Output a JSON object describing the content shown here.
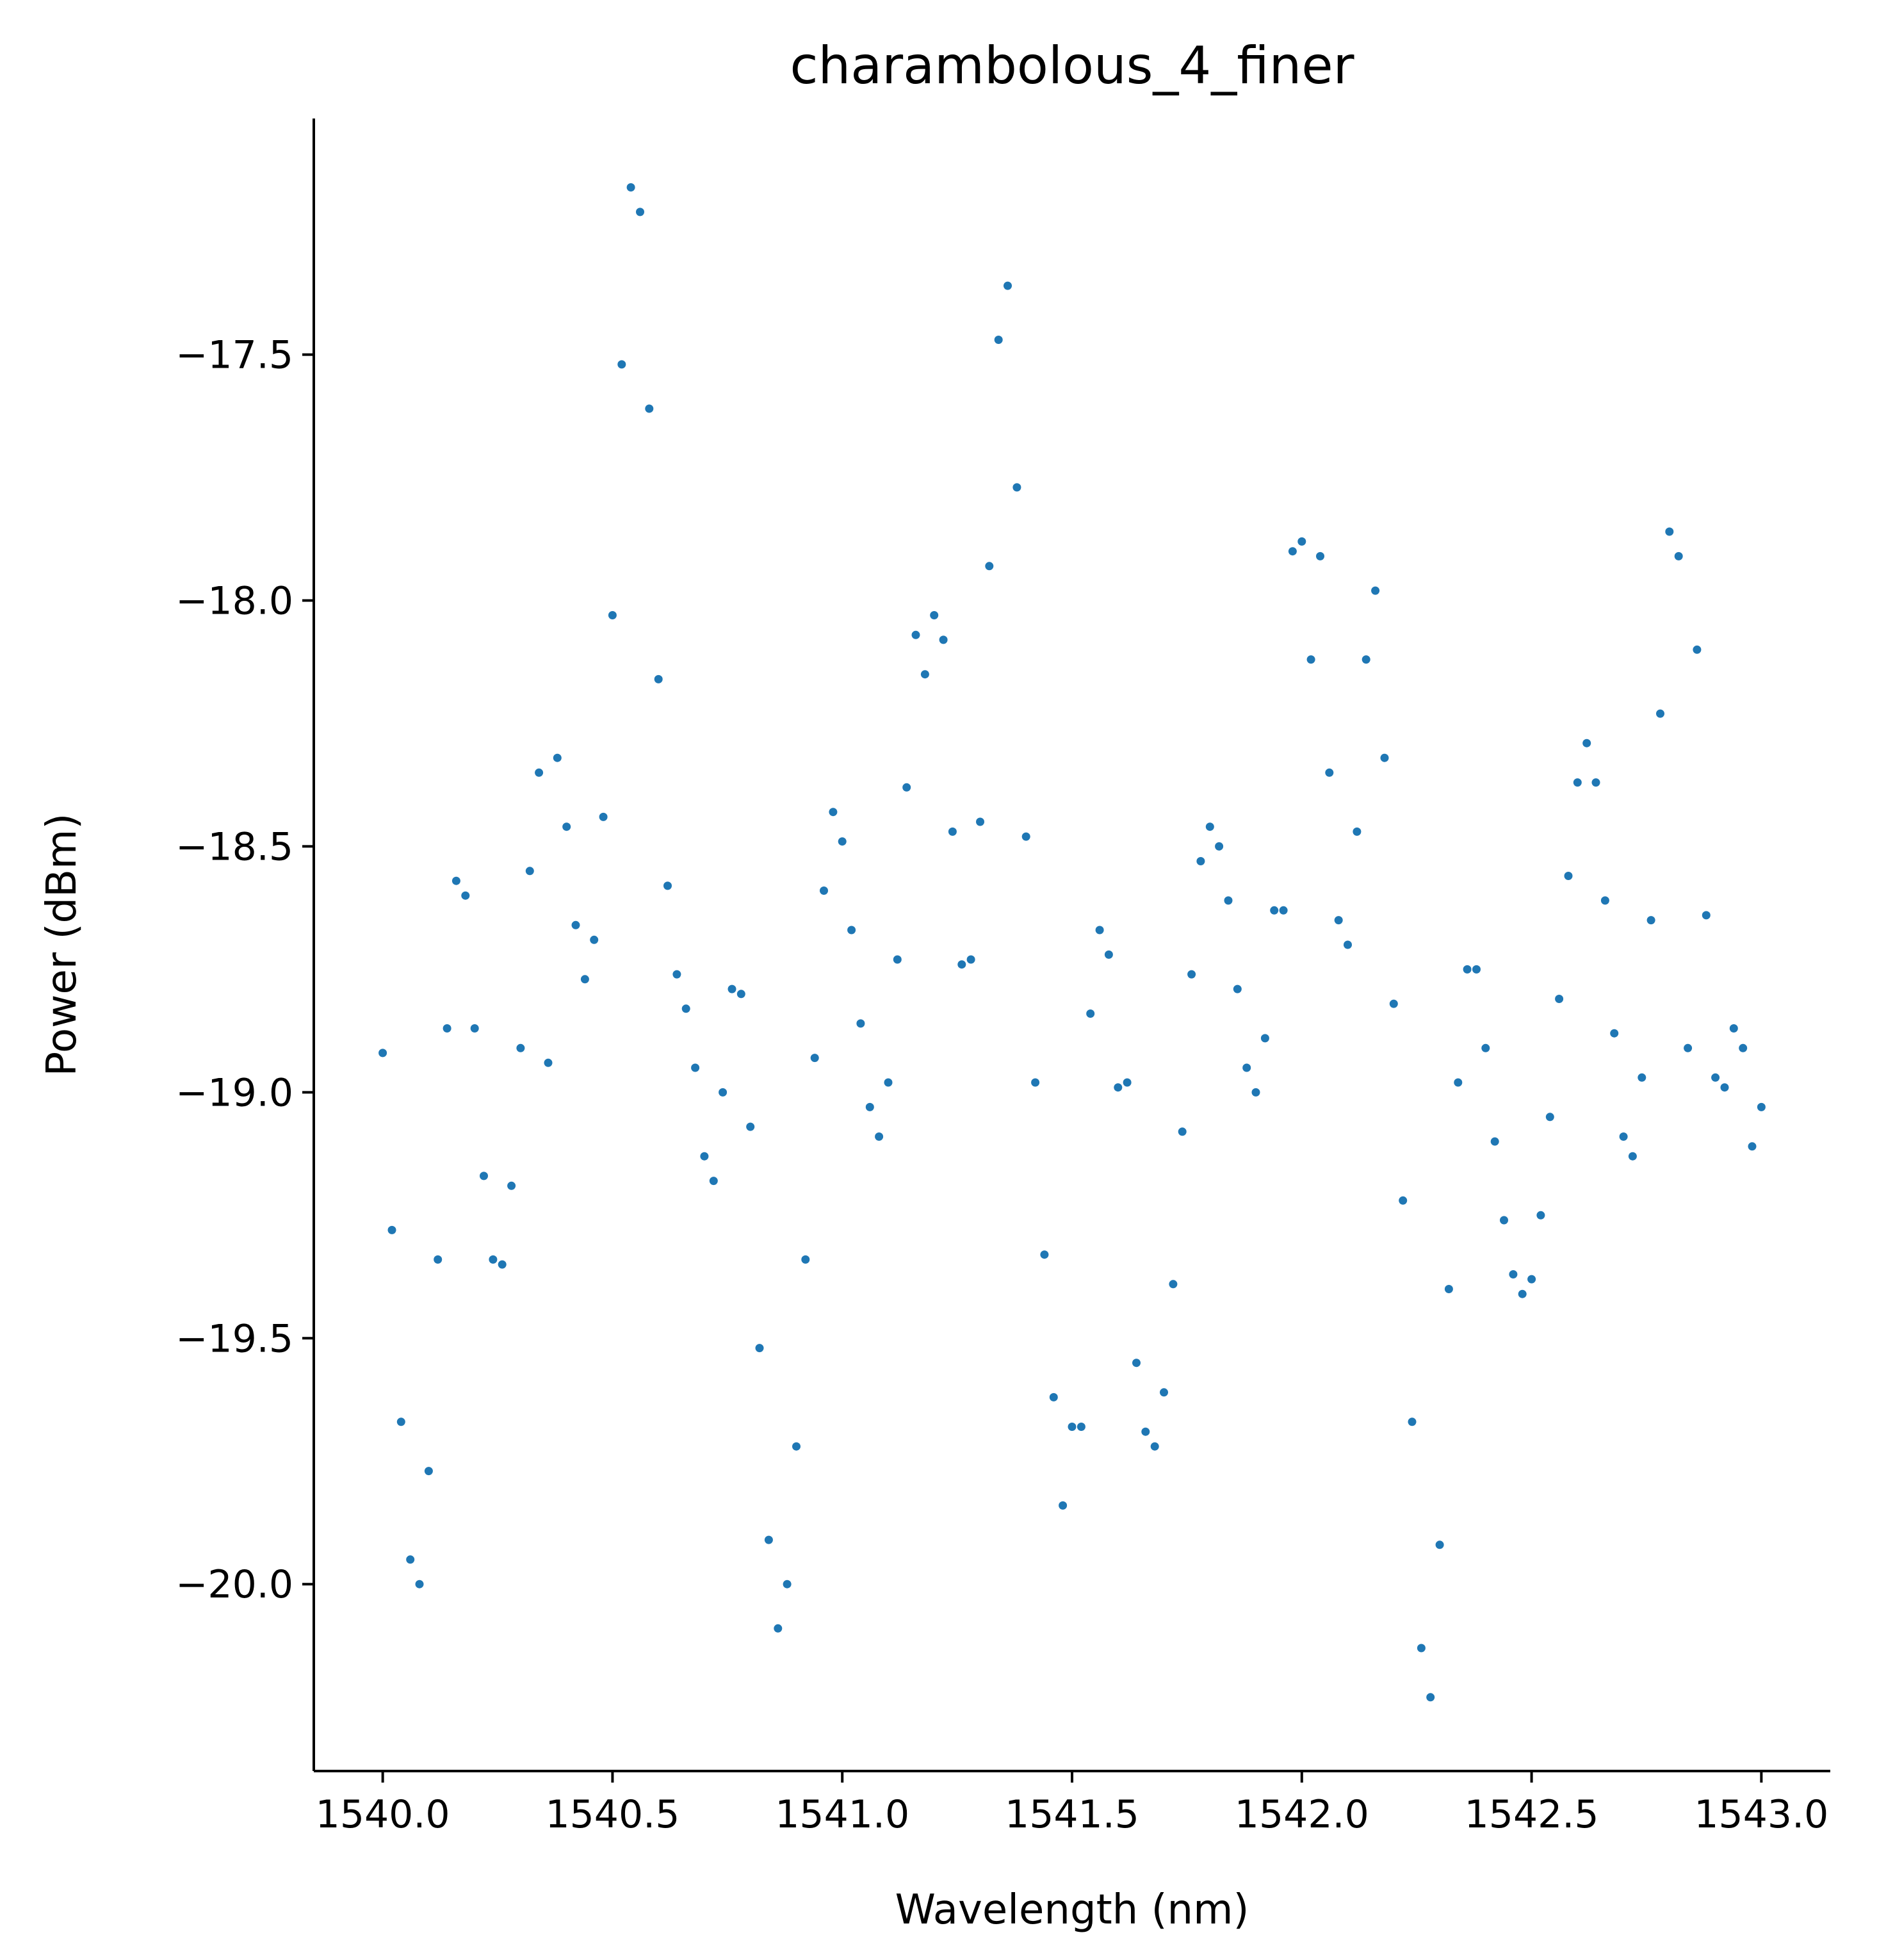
{
  "chart_data": {
    "type": "scatter",
    "title": "charambolous_4_finer",
    "xlabel": "Wavelength (nm)",
    "ylabel": "Power (dBm)",
    "xlim": [
      1539.85,
      1543.15
    ],
    "ylim": [
      -20.38,
      -17.02
    ],
    "xticks": [
      1540.0,
      1540.5,
      1541.0,
      1541.5,
      1542.0,
      1542.5,
      1543.0
    ],
    "xtick_labels": [
      "1540.0",
      "1540.5",
      "1541.0",
      "1541.5",
      "1542.0",
      "1542.5",
      "1543.0"
    ],
    "yticks": [
      -17.5,
      -18.0,
      -18.5,
      -19.0,
      -19.5,
      -20.0
    ],
    "ytick_labels": [
      "−17.5",
      "−18.0",
      "−18.5",
      "−19.0",
      "−19.5",
      "−20.0"
    ],
    "grid": false,
    "marker_color": "#1f77b4",
    "x": [
      1540.0,
      1540.02,
      1540.04,
      1540.06,
      1540.08,
      1540.1,
      1540.12,
      1540.14,
      1540.16,
      1540.18,
      1540.2,
      1540.22,
      1540.24,
      1540.26,
      1540.28,
      1540.3,
      1540.32,
      1540.34,
      1540.36,
      1540.38,
      1540.4,
      1540.42,
      1540.44,
      1540.46,
      1540.48,
      1540.5,
      1540.52,
      1540.54,
      1540.56,
      1540.58,
      1540.6,
      1540.62,
      1540.64,
      1540.66,
      1540.68,
      1540.7,
      1540.72,
      1540.74,
      1540.76,
      1540.78,
      1540.8,
      1540.82,
      1540.84,
      1540.86,
      1540.88,
      1540.9,
      1540.92,
      1540.94,
      1540.96,
      1540.98,
      1541.0,
      1541.02,
      1541.04,
      1541.06,
      1541.08,
      1541.1,
      1541.12,
      1541.14,
      1541.16,
      1541.18,
      1541.2,
      1541.22,
      1541.24,
      1541.26,
      1541.28,
      1541.3,
      1541.32,
      1541.34,
      1541.36,
      1541.38,
      1541.4,
      1541.42,
      1541.44,
      1541.46,
      1541.48,
      1541.5,
      1541.52,
      1541.54,
      1541.56,
      1541.58,
      1541.6,
      1541.62,
      1541.64,
      1541.66,
      1541.68,
      1541.7,
      1541.72,
      1541.74,
      1541.76,
      1541.78,
      1541.8,
      1541.82,
      1541.84,
      1541.86,
      1541.88,
      1541.9,
      1541.92,
      1541.94,
      1541.96,
      1541.98,
      1542.0,
      1542.02,
      1542.04,
      1542.06,
      1542.08,
      1542.1,
      1542.12,
      1542.14,
      1542.16,
      1542.18,
      1542.2,
      1542.22,
      1542.24,
      1542.26,
      1542.28,
      1542.3,
      1542.32,
      1542.34,
      1542.36,
      1542.38,
      1542.4,
      1542.42,
      1542.44,
      1542.46,
      1542.48,
      1542.5,
      1542.52,
      1542.54,
      1542.56,
      1542.58,
      1542.6,
      1542.62,
      1542.64,
      1542.66,
      1542.68,
      1542.7,
      1542.72,
      1542.74,
      1542.76,
      1542.78,
      1542.8,
      1542.82,
      1542.84,
      1542.86,
      1542.88,
      1542.9,
      1542.92,
      1542.94,
      1542.96,
      1542.98,
      1543.0
    ],
    "y": [
      -18.92,
      -19.28,
      -19.67,
      -19.95,
      -20.0,
      -19.77,
      -19.34,
      -18.87,
      -18.57,
      -18.6,
      -18.87,
      -19.17,
      -19.34,
      -19.35,
      -19.19,
      -18.91,
      -18.55,
      -18.35,
      -18.94,
      -18.32,
      -18.46,
      -18.66,
      -18.77,
      -18.69,
      -18.44,
      -18.03,
      -17.52,
      -17.16,
      -17.21,
      -17.61,
      -18.16,
      -18.58,
      -18.76,
      -18.83,
      -18.95,
      -19.13,
      -19.18,
      -19.0,
      -18.79,
      -18.8,
      -19.07,
      -19.52,
      -19.91,
      -20.09,
      -20.0,
      -19.72,
      -19.34,
      -18.93,
      -18.59,
      -18.43,
      -18.49,
      -18.67,
      -18.86,
      -19.03,
      -19.09,
      -18.98,
      -18.73,
      -18.38,
      -18.07,
      -18.15,
      -18.03,
      -18.08,
      -18.47,
      -18.74,
      -18.73,
      -18.45,
      -17.93,
      -17.47,
      -17.36,
      -17.77,
      -18.48,
      -18.98,
      -19.33,
      -19.62,
      -19.84,
      -19.68,
      -19.68,
      -18.84,
      -18.67,
      -18.72,
      -18.99,
      -18.98,
      -19.55,
      -19.69,
      -19.72,
      -19.61,
      -19.39,
      -19.08,
      -18.76,
      -18.53,
      -18.46,
      -18.5,
      -18.61,
      -18.79,
      -18.95,
      -19.0,
      -18.89,
      -18.63,
      -18.63,
      -17.9,
      -17.88,
      -18.12,
      -17.91,
      -18.35,
      -18.65,
      -18.7,
      -18.47,
      -18.12,
      -17.98,
      -18.32,
      -18.82,
      -19.22,
      -19.67,
      -20.13,
      -20.23,
      -19.92,
      -19.4,
      -18.98,
      -18.75,
      -18.75,
      -18.91,
      -19.1,
      -19.26,
      -19.37,
      -19.41,
      -19.38,
      -19.25,
      -19.05,
      -18.81,
      -18.56,
      -18.37,
      -18.29,
      -18.37,
      -18.61,
      -18.88,
      -19.09,
      -19.13,
      -18.97,
      -18.65,
      -18.23,
      -17.86,
      -17.91,
      -18.91,
      -18.1,
      -18.64,
      -18.97,
      -18.99,
      -18.87,
      -18.91,
      -19.11,
      -19.03
    ]
  }
}
